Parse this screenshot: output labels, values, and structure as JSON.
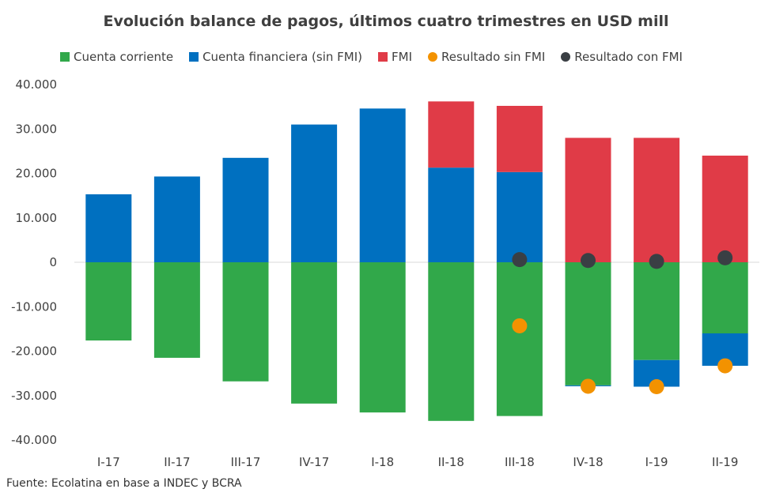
{
  "chart_data": {
    "type": "bar",
    "stacked": true,
    "title": "Evolución balance de pagos, últimos cuatro trimestres en USD mill",
    "xlabel": "",
    "ylabel": "",
    "ylim": [
      -40000,
      40000
    ],
    "yticks": [
      40000,
      30000,
      20000,
      10000,
      0,
      -10000,
      -20000,
      -30000,
      -40000
    ],
    "ytick_labels": [
      "40.000",
      "30.000",
      "20.000",
      "10.000",
      "0",
      "-10.000",
      "-20.000",
      "-30.000",
      "-40.000"
    ],
    "categories": [
      "I-17",
      "II-17",
      "III-17",
      "IV-17",
      "I-18",
      "II-18",
      "III-18",
      "IV-18",
      "I-19",
      "II-19"
    ],
    "series": [
      {
        "name": "Cuenta corriente",
        "kind": "bar",
        "color": "#31a84a",
        "values": [
          -17600,
          -21500,
          -26800,
          -31800,
          -33800,
          -35700,
          -34600,
          -27700,
          -22000,
          -16000
        ]
      },
      {
        "name": "Cuenta financiera (sin FMI)",
        "kind": "bar",
        "color": "#0070c0",
        "values": [
          15300,
          19300,
          23500,
          31000,
          34600,
          21300,
          20300,
          -200,
          -6000,
          -7300
        ]
      },
      {
        "name": "FMI",
        "kind": "bar",
        "color": "#e03b47",
        "values": [
          0,
          0,
          0,
          0,
          0,
          14900,
          14900,
          28000,
          28000,
          24000
        ]
      },
      {
        "name": "Resultado sin FMI",
        "kind": "point",
        "color": "#f39200",
        "values": [
          null,
          null,
          null,
          null,
          null,
          null,
          -14300,
          -27900,
          -28000,
          -23300
        ]
      },
      {
        "name": "Resultado con FMI",
        "kind": "point",
        "color": "#3a3f44",
        "values": [
          null,
          null,
          null,
          null,
          null,
          null,
          600,
          400,
          200,
          1000
        ]
      }
    ],
    "grid": false,
    "legend_position": "top"
  },
  "footer": {
    "source": "Fuente: Ecolatina en base a INDEC y BCRA"
  }
}
